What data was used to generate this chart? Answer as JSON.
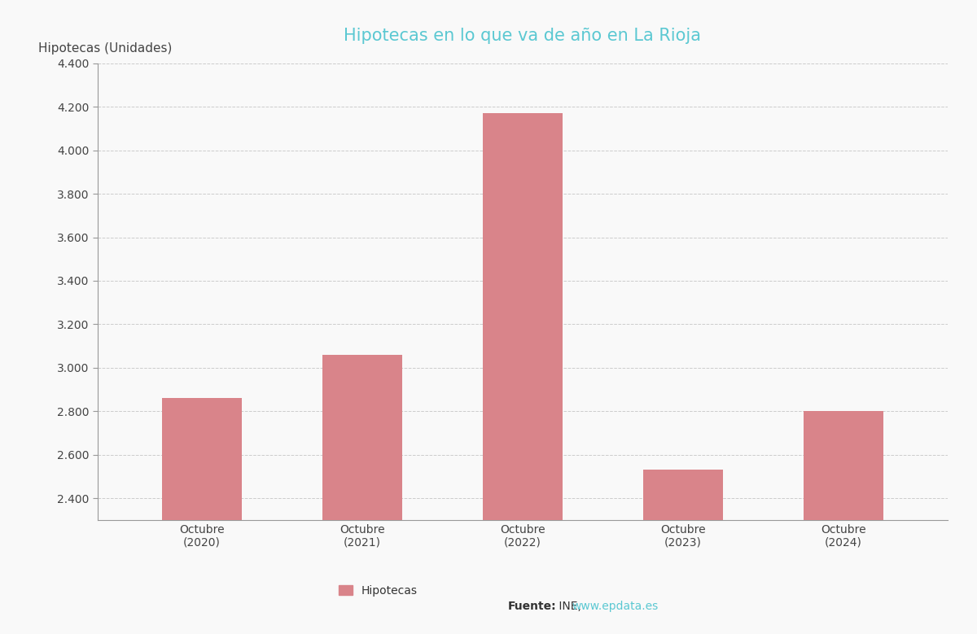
{
  "title": "Hipotecas en lo que va de año en La Rioja",
  "title_color": "#5bc8d2",
  "ylabel": "Hipotecas (Unidades)",
  "categories": [
    "Octubre\n(2020)",
    "Octubre\n(2021)",
    "Octubre\n(2022)",
    "Octubre\n(2023)",
    "Octubre\n(2024)"
  ],
  "values": [
    2860,
    3060,
    4170,
    2530,
    2800
  ],
  "bar_color": "#d9848a",
  "ylim_min": 2300,
  "ylim_max": 4400,
  "yticks": [
    2400,
    2600,
    2800,
    3000,
    3200,
    3400,
    3600,
    3800,
    4000,
    4200,
    4400
  ],
  "ytick_labels": [
    "2.400",
    "2.600",
    "2.800",
    "3.000",
    "3.200",
    "3.400",
    "3.600",
    "3.800",
    "4.000",
    "4.200",
    "4.400"
  ],
  "background_color": "#f9f9f9",
  "grid_color": "#cccccc",
  "legend_label": "Hipotecas",
  "source_prefix": "Fuente:",
  "source_middle": " INE, ",
  "source_link": "www.epdata.es",
  "source_link_color": "#5bc8d2",
  "title_fontsize": 15,
  "ylabel_fontsize": 11,
  "tick_fontsize": 10,
  "legend_fontsize": 10,
  "source_fontsize": 10
}
